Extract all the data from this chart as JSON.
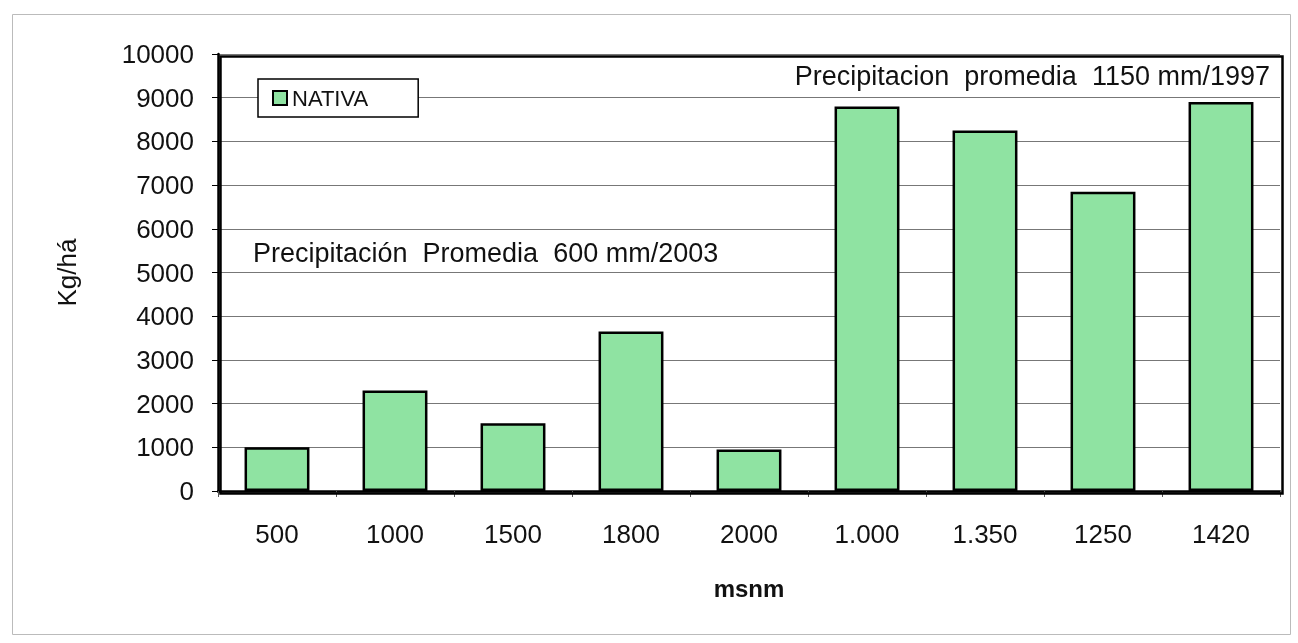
{
  "chart_data": {
    "type": "bar",
    "xlabel": "msnm",
    "ylabel": "Kg/há",
    "categories": [
      "500",
      "1000",
      "1500",
      "1800",
      "2000",
      "1.000",
      "1.350",
      "1250",
      "1420"
    ],
    "series": [
      {
        "name": "NATIVA",
        "color": "#8fe3a2",
        "values": [
          1000,
          2300,
          1550,
          3650,
          950,
          8800,
          8250,
          6850,
          8900
        ]
      }
    ],
    "ylim": [
      0,
      10000
    ],
    "yticks": [
      0,
      1000,
      2000,
      3000,
      4000,
      5000,
      6000,
      7000,
      8000,
      9000,
      10000
    ],
    "grid": "y",
    "legend": "top left",
    "annotations": [
      "Precipitacion  promedia  1150 mm/1997",
      "Precipitación  Promedia  600 mm/2003"
    ]
  }
}
